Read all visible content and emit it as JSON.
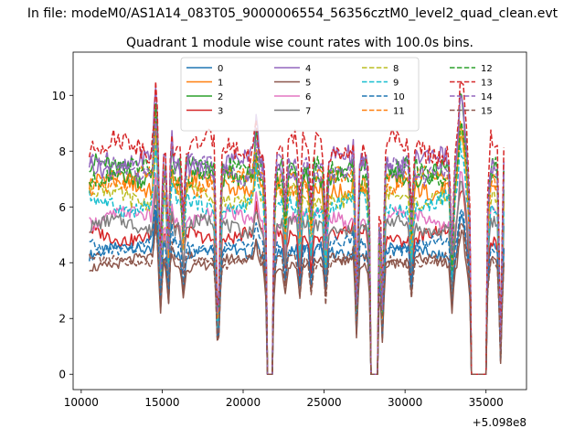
{
  "figure": {
    "suptitle": "In file: modeM0/AS1A14_083T05_9000006554_56356cztM0_level2_quad_clean.evt",
    "offset_text": "+5.098e8"
  },
  "chart_data": {
    "type": "line",
    "title": "Quadrant 1 module wise count rates with 100.0s bins.",
    "xlabel": "",
    "ylabel": "",
    "x_offset": 509800000,
    "xlim": [
      9500,
      37500
    ],
    "ylim": [
      -0.55,
      11.55
    ],
    "xticks": [
      10000,
      15000,
      20000,
      25000,
      30000,
      35000
    ],
    "xtick_labels": [
      "10000",
      "15000",
      "20000",
      "25000",
      "30000",
      "35000"
    ],
    "yticks": [
      0,
      2,
      4,
      6,
      8,
      10
    ],
    "ytick_labels": [
      "0",
      "2",
      "4",
      "6",
      "8",
      "10"
    ],
    "grid": false,
    "legend_position": "upper center",
    "legend_columns": 4,
    "x_start": 10500,
    "x_step": 100,
    "gaps": [
      {
        "from": 21500,
        "to": 21800
      },
      {
        "from": 27900,
        "to": 28300
      },
      {
        "from": 34100,
        "to": 35000
      }
    ],
    "dips": [
      {
        "center": 14900,
        "depth": 0.45
      },
      {
        "center": 15400,
        "depth": 0.5
      },
      {
        "center": 16300,
        "depth": 0.3
      },
      {
        "center": 18400,
        "depth": 0.6
      },
      {
        "center": 18500,
        "depth": 0.55
      },
      {
        "center": 22600,
        "depth": 0.25
      },
      {
        "center": 23500,
        "depth": 0.3
      },
      {
        "center": 24200,
        "depth": 0.25
      },
      {
        "center": 25100,
        "depth": 0.35
      },
      {
        "center": 27000,
        "depth": 0.75
      },
      {
        "center": 28600,
        "depth": 0.7
      },
      {
        "center": 30400,
        "depth": 0.3
      },
      {
        "center": 32900,
        "depth": 0.45
      },
      {
        "center": 35900,
        "depth": 0.9
      }
    ],
    "peaks": [
      {
        "center": 14600,
        "height": 1.9
      },
      {
        "center": 15500,
        "height": 1.2
      },
      {
        "center": 20800,
        "height": 1.0
      },
      {
        "center": 26900,
        "height": 0.9
      },
      {
        "center": 33400,
        "height": 1.6
      },
      {
        "center": 33600,
        "height": 1.3
      }
    ],
    "series": [
      {
        "name": "0",
        "color": "#1f77b4",
        "dash": false,
        "base": 4.4
      },
      {
        "name": "1",
        "color": "#ff7f0e",
        "dash": false,
        "base": 6.8
      },
      {
        "name": "2",
        "color": "#2ca02c",
        "dash": false,
        "base": 7.3
      },
      {
        "name": "3",
        "color": "#d62728",
        "dash": false,
        "base": 5.0
      },
      {
        "name": "4",
        "color": "#9467bd",
        "dash": false,
        "base": 7.6
      },
      {
        "name": "5",
        "color": "#8c564b",
        "dash": false,
        "base": 4.0
      },
      {
        "name": "6",
        "color": "#e377c2",
        "dash": false,
        "base": 5.6
      },
      {
        "name": "7",
        "color": "#7f7f7f",
        "dash": false,
        "base": 5.3
      },
      {
        "name": "8",
        "color": "#bcbd22",
        "dash": true,
        "base": 6.4
      },
      {
        "name": "9",
        "color": "#17becf",
        "dash": true,
        "base": 6.1
      },
      {
        "name": "10",
        "color": "#1f77b4",
        "dash": true,
        "base": 4.6
      },
      {
        "name": "11",
        "color": "#ff7f0e",
        "dash": true,
        "base": 6.9
      },
      {
        "name": "12",
        "color": "#2ca02c",
        "dash": true,
        "base": 7.2
      },
      {
        "name": "13",
        "color": "#d62728",
        "dash": true,
        "base": 8.1
      },
      {
        "name": "14",
        "color": "#9467bd",
        "dash": true,
        "base": 7.4
      },
      {
        "name": "15",
        "color": "#8c564b",
        "dash": true,
        "base": 4.1
      }
    ]
  }
}
